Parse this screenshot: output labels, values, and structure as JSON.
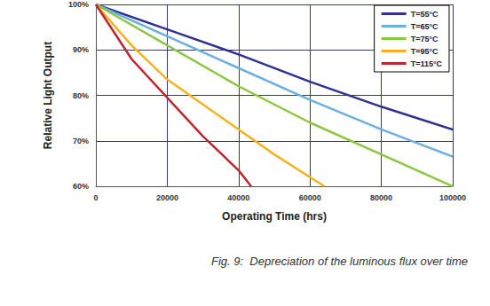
{
  "chart_data": {
    "type": "line",
    "title": "Fig. 9:  Depreciation of the luminous flux over time",
    "x_label": "Operating Time (hrs)",
    "y_label": "Relative Light Output",
    "xlim": [
      0,
      100000
    ],
    "ylim": [
      60,
      100
    ],
    "xticks": [
      0,
      20000,
      40000,
      60000,
      80000,
      100000
    ],
    "yticks": [
      {
        "value": 60,
        "label": "60%"
      },
      {
        "value": 70,
        "label": "70%"
      },
      {
        "value": 80,
        "label": "80%"
      },
      {
        "value": 90,
        "label": "90%"
      },
      {
        "value": 100,
        "label": "100%"
      }
    ],
    "grid": true,
    "legend": "top-right",
    "series": [
      {
        "name": "T=55°C",
        "color": "#2e3192",
        "x": [
          0,
          20000,
          40000,
          60000,
          80000,
          100000
        ],
        "values": [
          100,
          94.5,
          89,
          83,
          77.5,
          72.5
        ]
      },
      {
        "name": "T=65°C",
        "color": "#6ab0e0",
        "x": [
          0,
          20000,
          40000,
          60000,
          80000,
          100000
        ],
        "values": [
          100,
          93,
          86,
          79,
          72.5,
          66.5
        ]
      },
      {
        "name": "T=75°C",
        "color": "#8dc63f",
        "x": [
          0,
          20000,
          40000,
          60000,
          80000,
          100000
        ],
        "values": [
          100,
          91,
          82,
          74,
          67,
          60
        ]
      },
      {
        "name": "T=95°C",
        "color": "#f7b21b",
        "x": [
          0,
          10000,
          20000,
          30000,
          40000,
          50000,
          60000,
          64000
        ],
        "values": [
          100,
          91,
          83.5,
          78,
          72.5,
          67,
          62,
          60
        ]
      },
      {
        "name": "T=115°C",
        "color": "#c0272d",
        "x": [
          0,
          10000,
          20000,
          30000,
          40000,
          43500
        ],
        "values": [
          100,
          88,
          79.5,
          71,
          63.5,
          60
        ]
      }
    ]
  }
}
